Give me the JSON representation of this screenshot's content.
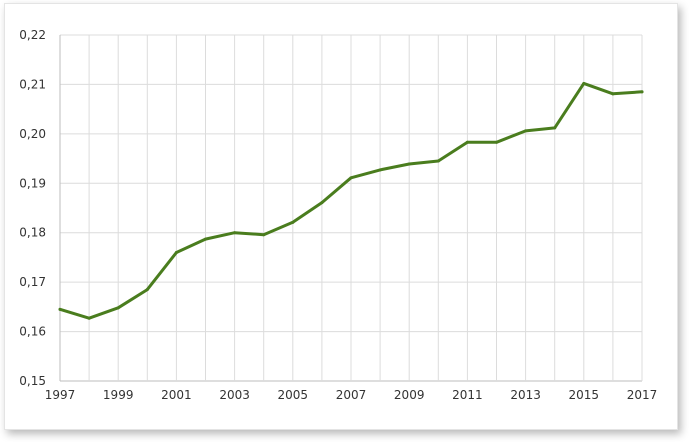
{
  "chart_data": {
    "type": "line",
    "title": "",
    "xlabel": "",
    "ylabel": "",
    "x": [
      1997,
      1998,
      1999,
      2000,
      2001,
      2002,
      2003,
      2004,
      2005,
      2006,
      2007,
      2008,
      2009,
      2010,
      2011,
      2012,
      2013,
      2014,
      2015,
      2016,
      2017
    ],
    "series": [
      {
        "values": [
          0.1645,
          0.1627,
          0.1648,
          0.1685,
          0.176,
          0.1787,
          0.18,
          0.1796,
          0.1821,
          0.1861,
          0.1911,
          0.1927,
          0.1939,
          0.1945,
          0.1983,
          0.1983,
          0.2006,
          0.2012,
          0.2102,
          0.2081,
          0.2085
        ],
        "color": "#4a7d1e"
      }
    ],
    "ylim": [
      0.15,
      0.22
    ],
    "xlim": [
      1997,
      2017
    ],
    "y_ticks": [
      "0,15",
      "0,16",
      "0,17",
      "0,18",
      "0,19",
      "0,20",
      "0,21",
      "0,22"
    ],
    "x_ticks": [
      "1997",
      "1999",
      "2001",
      "2003",
      "2005",
      "2007",
      "2009",
      "2011",
      "2013",
      "2015",
      "2017"
    ],
    "grid": true,
    "legend": "none"
  }
}
